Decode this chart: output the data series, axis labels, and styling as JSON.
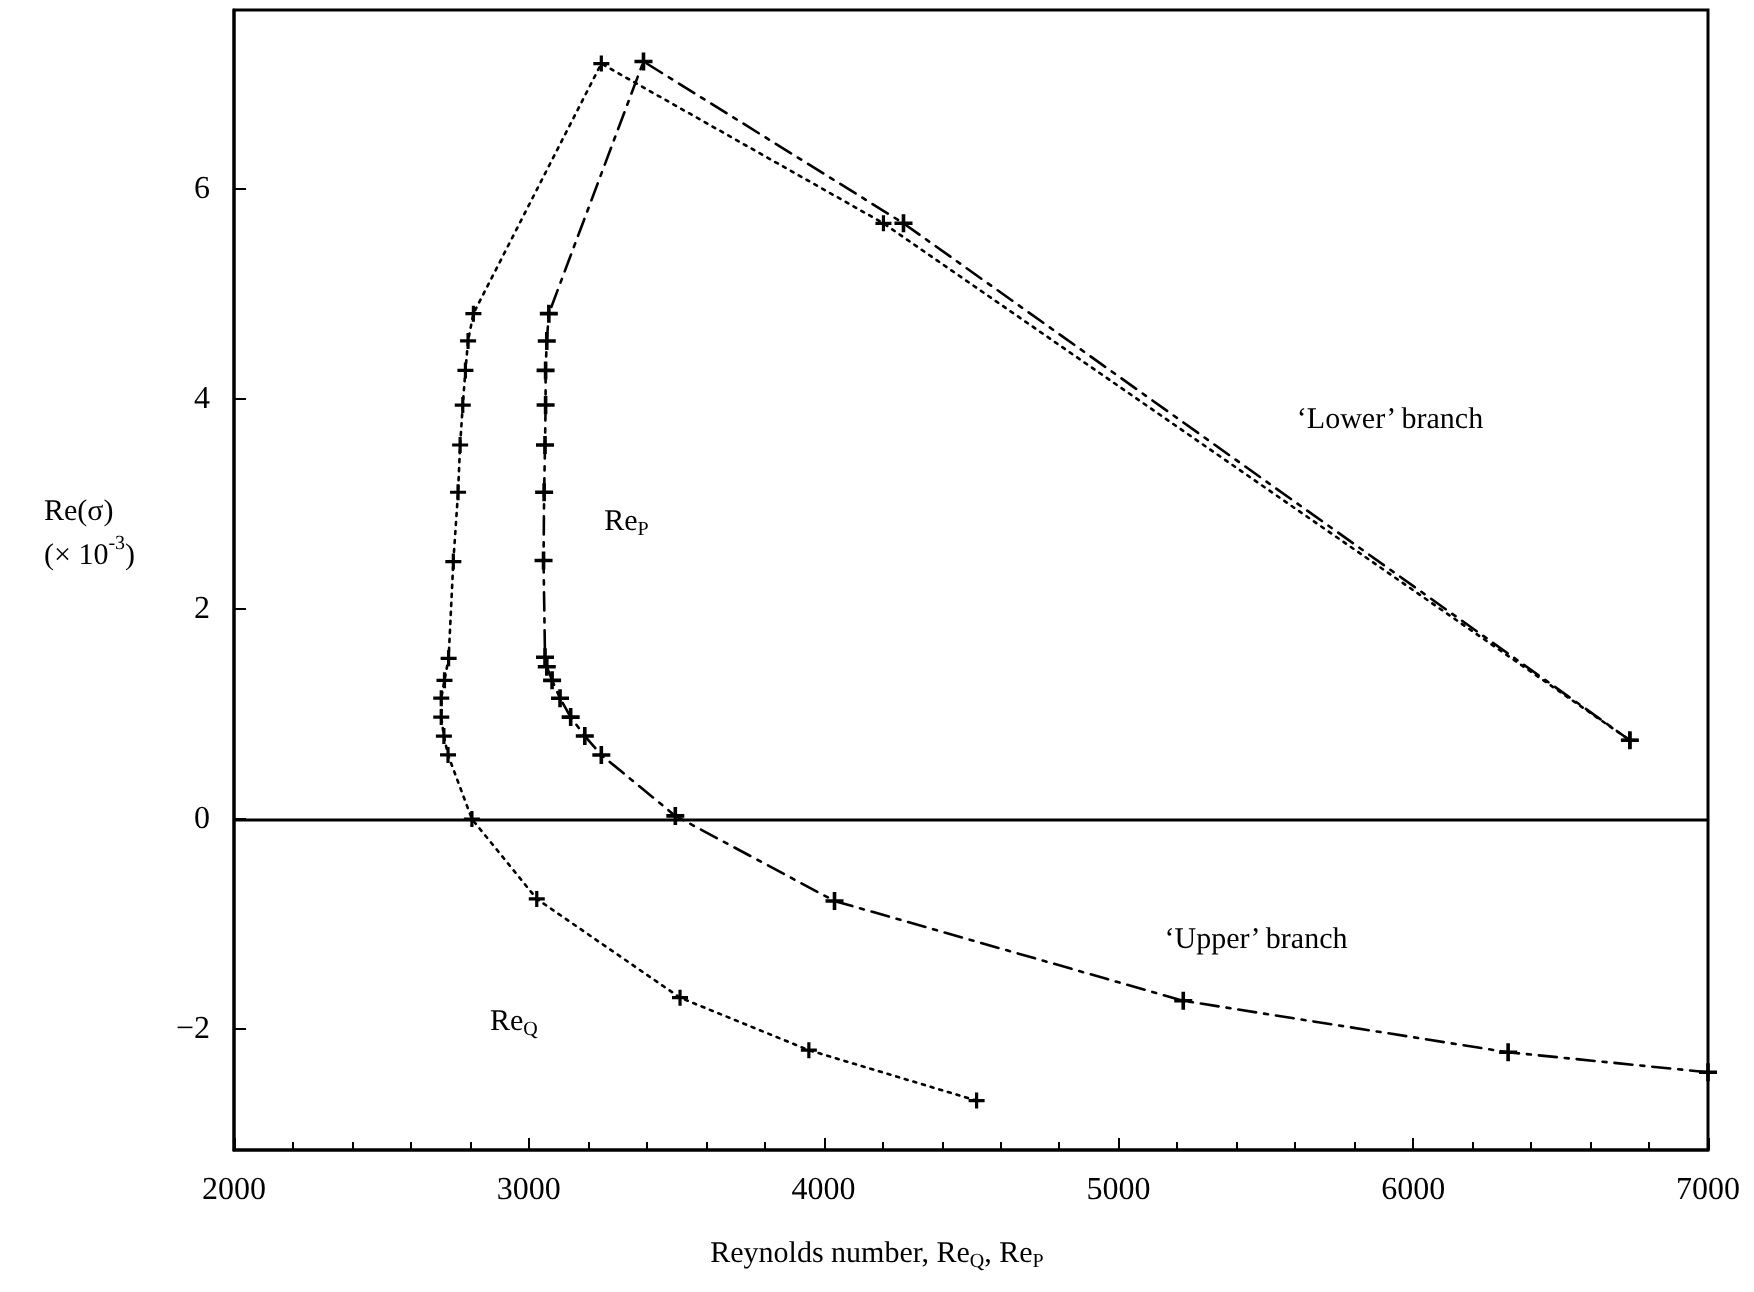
{
  "chart_data": {
    "type": "line",
    "xlabel": "Reynolds number, Re$_{Q}$, Re$_{P}$",
    "ylabel": "Re(σ)\n(× 10$^{-3}$)",
    "xlim": [
      2000,
      7000
    ],
    "xticks": [
      2000,
      3000,
      4000,
      5000,
      6000,
      7000
    ],
    "ylim": [
      -3.15,
      7.7
    ],
    "yticks": [
      -2,
      0,
      2,
      4,
      6
    ],
    "grid": false,
    "legend": false,
    "series": [
      {
        "name": "Re$_{Q}$",
        "color": "#000000",
        "marker": "cross",
        "line_style": "dotted",
        "x": [
          4519,
          3950,
          3513,
          3027,
          2807,
          2726,
          2712,
          2703,
          2703,
          2714,
          2728,
          2744,
          2760,
          2767,
          2776,
          2785,
          2794,
          2812,
          3246,
          4203,
          6735
        ],
        "values": [
          -2.68,
          -2.2,
          -1.7,
          -0.76,
          0,
          0.61,
          0.79,
          0.97,
          1.15,
          1.32,
          1.53,
          2.45,
          3.11,
          3.56,
          3.94,
          4.27,
          4.55,
          4.81,
          7.19,
          5.67,
          0.75
        ]
      },
      {
        "name": "Re$_{P}$",
        "color": "#000000",
        "marker": "cross",
        "line_style": "dashed",
        "x": [
          7000,
          6322,
          5220,
          4037,
          3497,
          3246,
          3190,
          3142,
          3106,
          3079,
          3061,
          3055,
          3050,
          3052,
          3055,
          3057,
          3057,
          3061,
          3068,
          3389,
          4271,
          6735
        ],
        "values": [
          -2.41,
          -2.22,
          -1.73,
          -0.78,
          0.03,
          0.61,
          0.79,
          0.97,
          1.15,
          1.32,
          1.45,
          1.54,
          2.46,
          3.11,
          3.56,
          3.94,
          4.27,
          4.55,
          4.81,
          7.21,
          5.67,
          0.75
        ]
      }
    ],
    "ref_lines": [
      {
        "axis": "y",
        "value": 0,
        "color": "#000000",
        "line_style": "solid"
      }
    ],
    "annotations": [
      "‘Lower’ branch",
      "‘Upper’ branch"
    ]
  }
}
